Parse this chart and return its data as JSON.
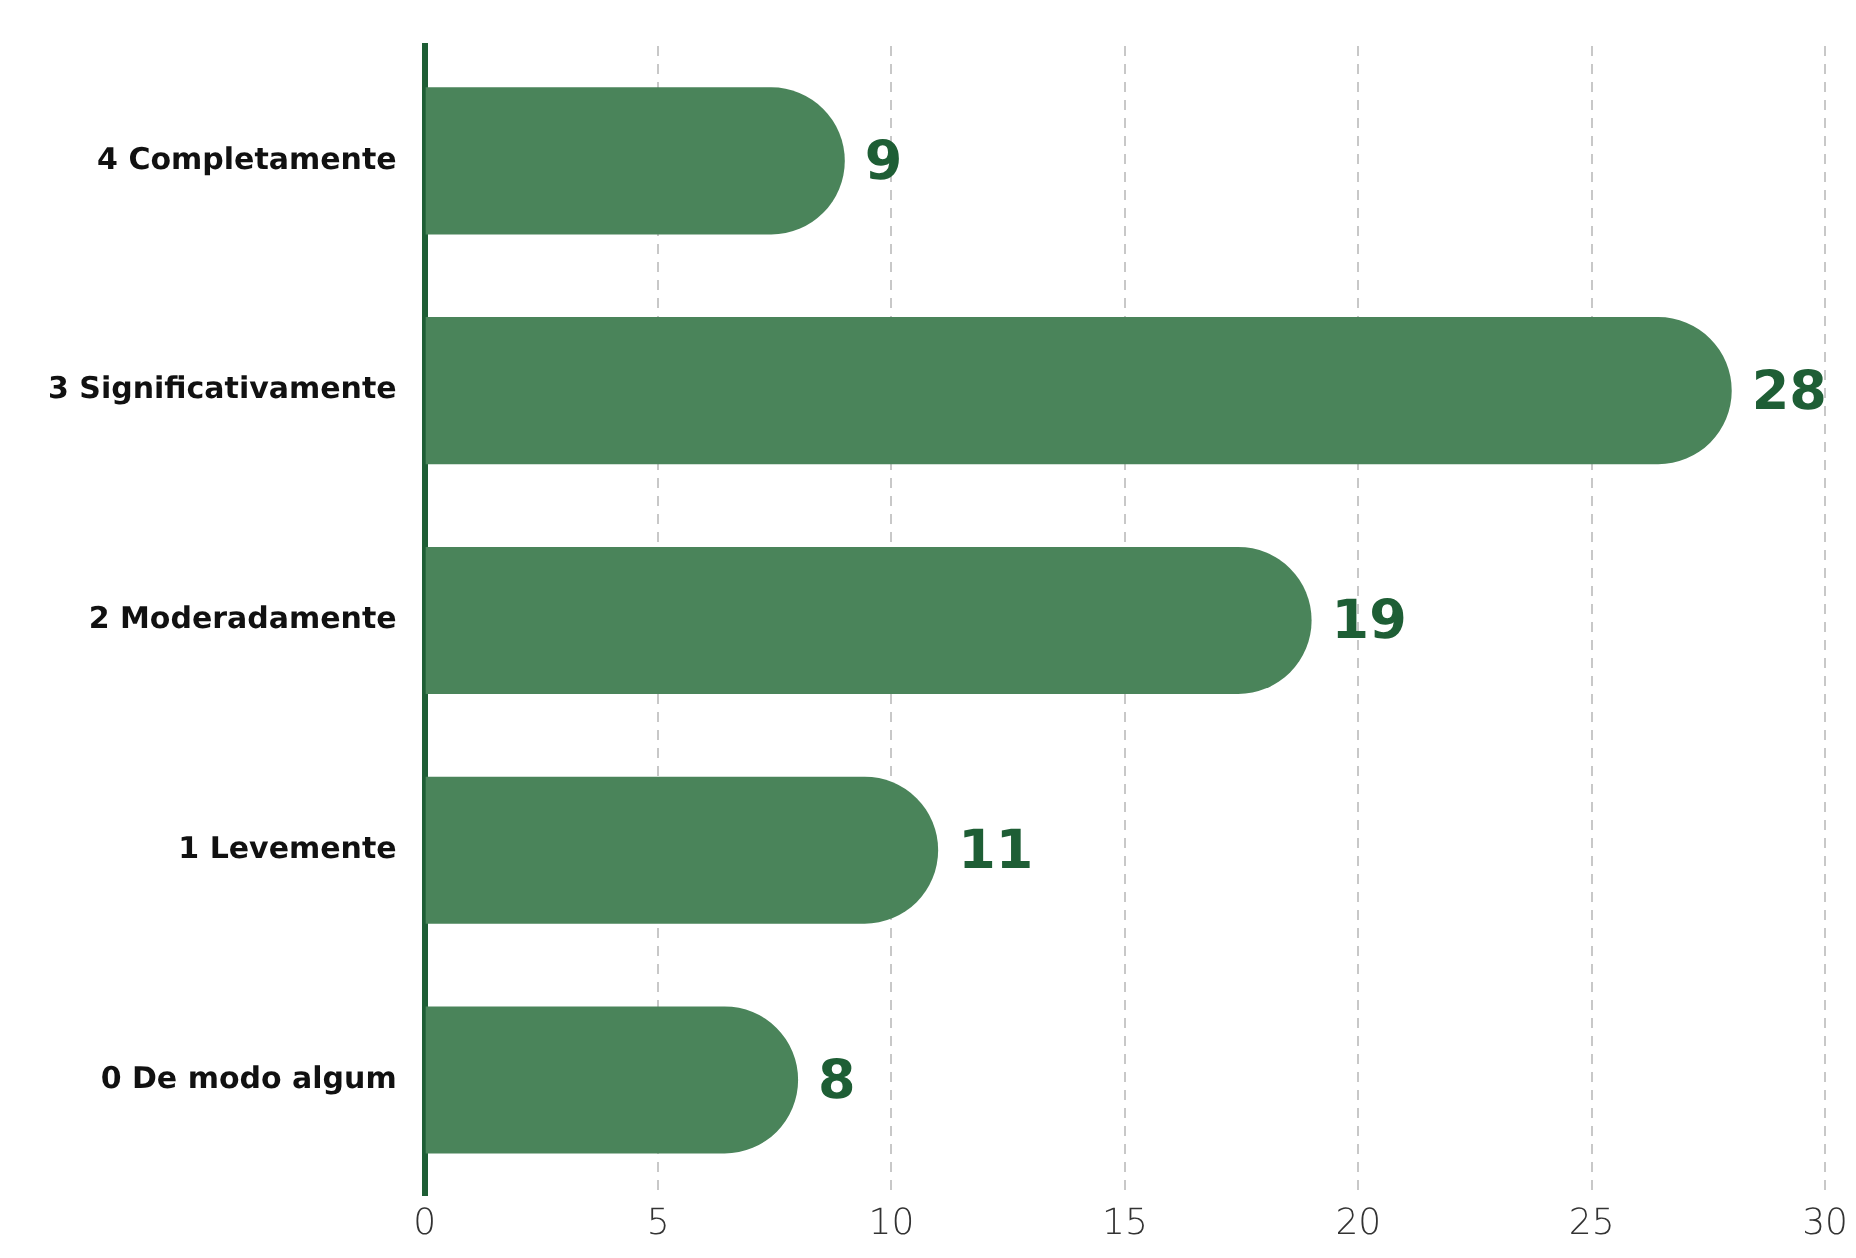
{
  "chart_data": {
    "type": "bar",
    "orientation": "horizontal",
    "categories": [
      "4 Completamente",
      "3 Significativamente",
      "2 Moderadamente",
      "1 Levemente",
      "0 De modo algum"
    ],
    "values": [
      9,
      28,
      19,
      11,
      8
    ],
    "color": "#4a845a",
    "xlim": [
      0,
      30
    ],
    "xticks": [
      0,
      5,
      10,
      15,
      20,
      25,
      30
    ],
    "grid": "x",
    "legend": false,
    "data_labels": true
  }
}
